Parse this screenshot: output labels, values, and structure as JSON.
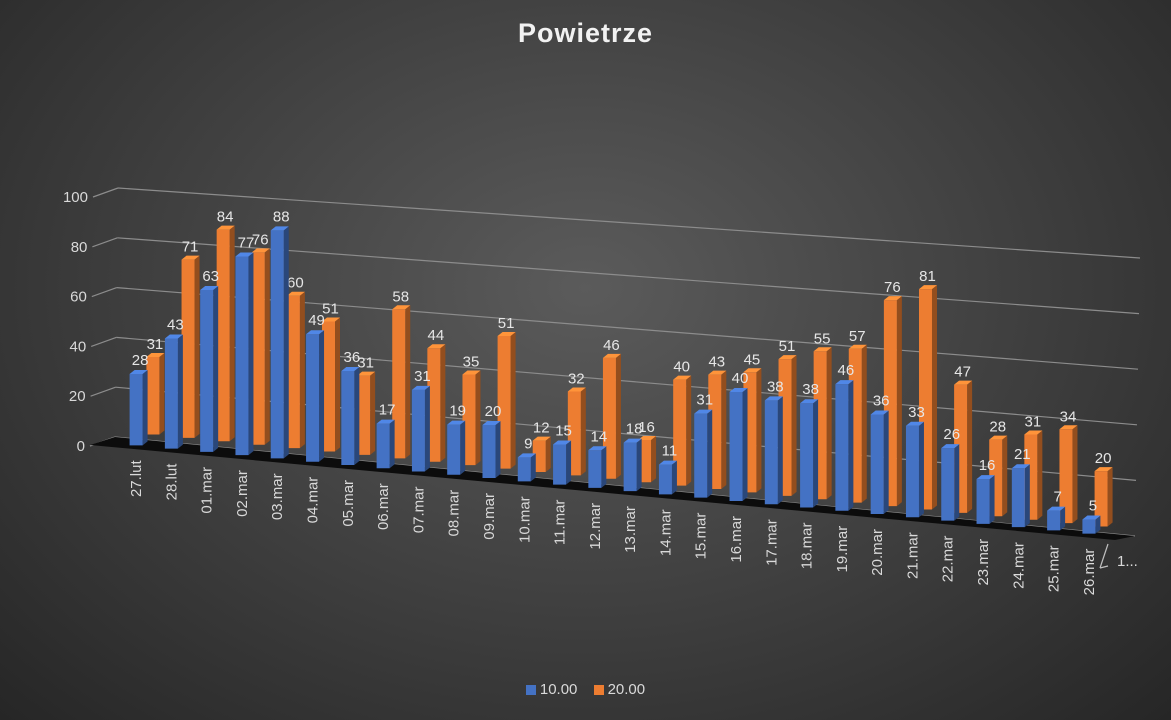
{
  "chart_data": {
    "type": "bar",
    "title": "Powietrze",
    "xlabel": "",
    "ylabel": "",
    "ylim": [
      0,
      100
    ],
    "yticks": [
      0,
      20,
      40,
      60,
      80,
      100
    ],
    "categories": [
      "27.lut",
      "28.lut",
      "01.mar",
      "02.mar",
      "03.mar",
      "04.mar",
      "05.mar",
      "06.mar",
      "07.mar",
      "08.mar",
      "09.mar",
      "10.mar",
      "11.mar",
      "12.mar",
      "13.mar",
      "14.mar",
      "15.mar",
      "16.mar",
      "17.mar",
      "18.mar",
      "19.mar",
      "20.mar",
      "21.mar",
      "22.mar",
      "23.mar",
      "24.mar",
      "25.mar",
      "26.mar"
    ],
    "depth_axis_label": "1...",
    "series": [
      {
        "name": "10.00",
        "color": "#4472c4",
        "values": [
          28,
          43,
          63,
          77,
          88,
          49,
          36,
          17,
          31,
          19,
          20,
          9,
          15,
          14,
          18,
          11,
          31,
          40,
          38,
          38,
          46,
          36,
          33,
          26,
          16,
          21,
          7,
          5
        ]
      },
      {
        "name": "20.00",
        "color": "#ed7d31",
        "values": [
          31,
          71,
          84,
          76,
          60,
          51,
          31,
          58,
          44,
          35,
          51,
          12,
          32,
          46,
          16,
          40,
          43,
          45,
          51,
          55,
          57,
          76,
          81,
          47,
          28,
          31,
          34,
          20
        ]
      }
    ],
    "grid": true,
    "legend": "bottom"
  }
}
